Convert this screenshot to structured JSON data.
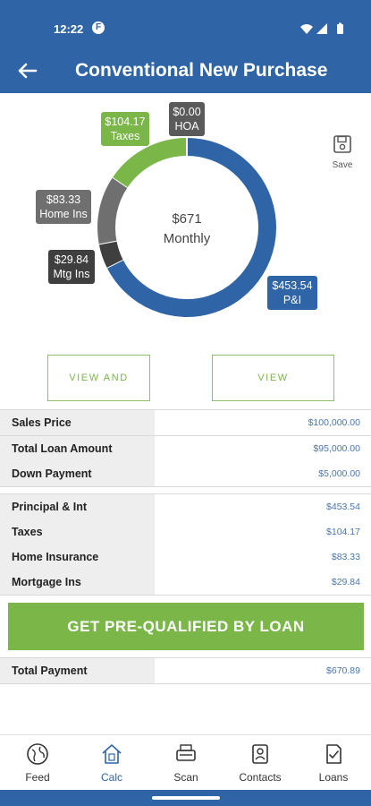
{
  "status_bar": {
    "time": "12:22",
    "app_icon_letter": "F"
  },
  "header": {
    "title": "Conventional New Purchase"
  },
  "donut": {
    "center_amount": "$671",
    "center_label": "Monthly",
    "segments": [
      {
        "name": "P&I",
        "value": 453.54,
        "color": "#2f64a6"
      },
      {
        "name": "Mortgage Ins",
        "value": 29.84,
        "color": "#3f3f3f"
      },
      {
        "name": "Home Ins",
        "value": 83.33,
        "color": "#6f6f6f"
      },
      {
        "name": "Taxes",
        "value": 104.17,
        "color": "#7ab648"
      },
      {
        "name": "HOA",
        "value": 0.0,
        "color": "#5a5a5a"
      }
    ],
    "tags": {
      "taxes": {
        "amount": "$104.17",
        "label": "Taxes"
      },
      "hoa": {
        "amount": "$0.00",
        "label": "HOA"
      },
      "home_ins": {
        "amount": "$83.33",
        "label": "Home Ins"
      },
      "mtg_ins": {
        "amount": "$29.84",
        "label": "Mtg Ins"
      },
      "pi": {
        "amount": "$453.54",
        "label": "P&I"
      }
    }
  },
  "save": {
    "label": "Save",
    "icon": "save-icon"
  },
  "buttons": {
    "view_share": "VIEW AND SHARE",
    "view_amortization": "VIEW AMORTIZATION",
    "prequal": "GET PRE-QUALIFIED BY LOAN"
  },
  "loan_rows": [
    {
      "label": "Sales Price",
      "value": "$100,000.00"
    },
    {
      "label": "Total Loan Amount",
      "value": "$95,000.00"
    },
    {
      "label": "Down Payment",
      "value": "$5,000.00"
    }
  ],
  "payment_rows": [
    {
      "label": "Principal & Int",
      "value": "$453.54"
    },
    {
      "label": "Taxes",
      "value": "$104.17"
    },
    {
      "label": "Home Insurance",
      "value": "$83.33"
    },
    {
      "label": "Mortgage Ins",
      "value": "$29.84"
    }
  ],
  "total_row": {
    "label": "Total Payment",
    "value": "$670.89"
  },
  "tabs": [
    {
      "label": "Feed",
      "icon": "globe-icon",
      "active": false
    },
    {
      "label": "Calc",
      "icon": "home-calculator-icon",
      "active": true
    },
    {
      "label": "Scan",
      "icon": "scanner-icon",
      "active": false
    },
    {
      "label": "Contacts",
      "icon": "contacts-icon",
      "active": false
    },
    {
      "label": "Loans",
      "icon": "loans-document-icon",
      "active": false
    }
  ],
  "colors": {
    "brand_blue": "#2f64a6",
    "accent_green": "#7ab648",
    "value_blue": "#4a76b3"
  }
}
